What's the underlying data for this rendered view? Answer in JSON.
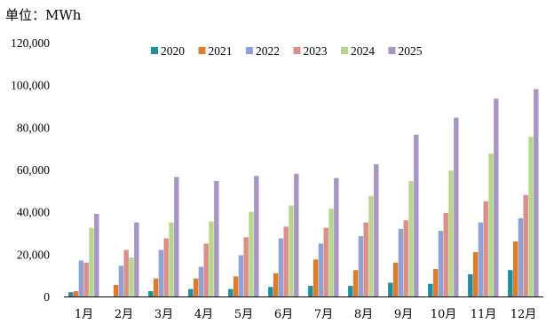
{
  "chart_data": {
    "type": "bar",
    "unit_label": "单位：MWh",
    "categories": [
      "1月",
      "2月",
      "3月",
      "4月",
      "5月",
      "6月",
      "7月",
      "8月",
      "9月",
      "10月",
      "11月",
      "12月"
    ],
    "ylim": [
      0,
      120000
    ],
    "yticks": [
      0,
      20000,
      40000,
      60000,
      80000,
      100000,
      120000
    ],
    "ytick_labels": [
      "0",
      "20,000",
      "40,000",
      "60,000",
      "80,000",
      "100,000",
      "120,000"
    ],
    "legend_position": "top-center",
    "grid": false,
    "series": [
      {
        "name": "2020",
        "color": "#1f8fa0",
        "values": [
          2000,
          0,
          2500,
          3500,
          3500,
          4500,
          5000,
          5000,
          6500,
          6000,
          10500,
          12500
        ]
      },
      {
        "name": "2021",
        "color": "#e07b2a",
        "values": [
          2500,
          5500,
          8500,
          8500,
          9500,
          11000,
          17500,
          12500,
          16000,
          13000,
          21000,
          26000
        ]
      },
      {
        "name": "2022",
        "color": "#8ea3d4",
        "values": [
          17000,
          14500,
          22000,
          14000,
          19500,
          27500,
          25000,
          28500,
          32000,
          31000,
          35000,
          37000
        ]
      },
      {
        "name": "2023",
        "color": "#dc8e88",
        "values": [
          16000,
          22000,
          27500,
          25000,
          28000,
          33000,
          32500,
          35000,
          36000,
          39500,
          45000,
          48000
        ]
      },
      {
        "name": "2024",
        "color": "#b8d68e",
        "values": [
          32500,
          18500,
          35000,
          35500,
          40000,
          43000,
          41500,
          47500,
          54500,
          59500,
          67500,
          75500
        ]
      },
      {
        "name": "2025",
        "color": "#a796c4",
        "values": [
          39000,
          35000,
          56500,
          54500,
          57000,
          58000,
          56000,
          62500,
          76500,
          84500,
          93500,
          98000
        ]
      }
    ]
  }
}
